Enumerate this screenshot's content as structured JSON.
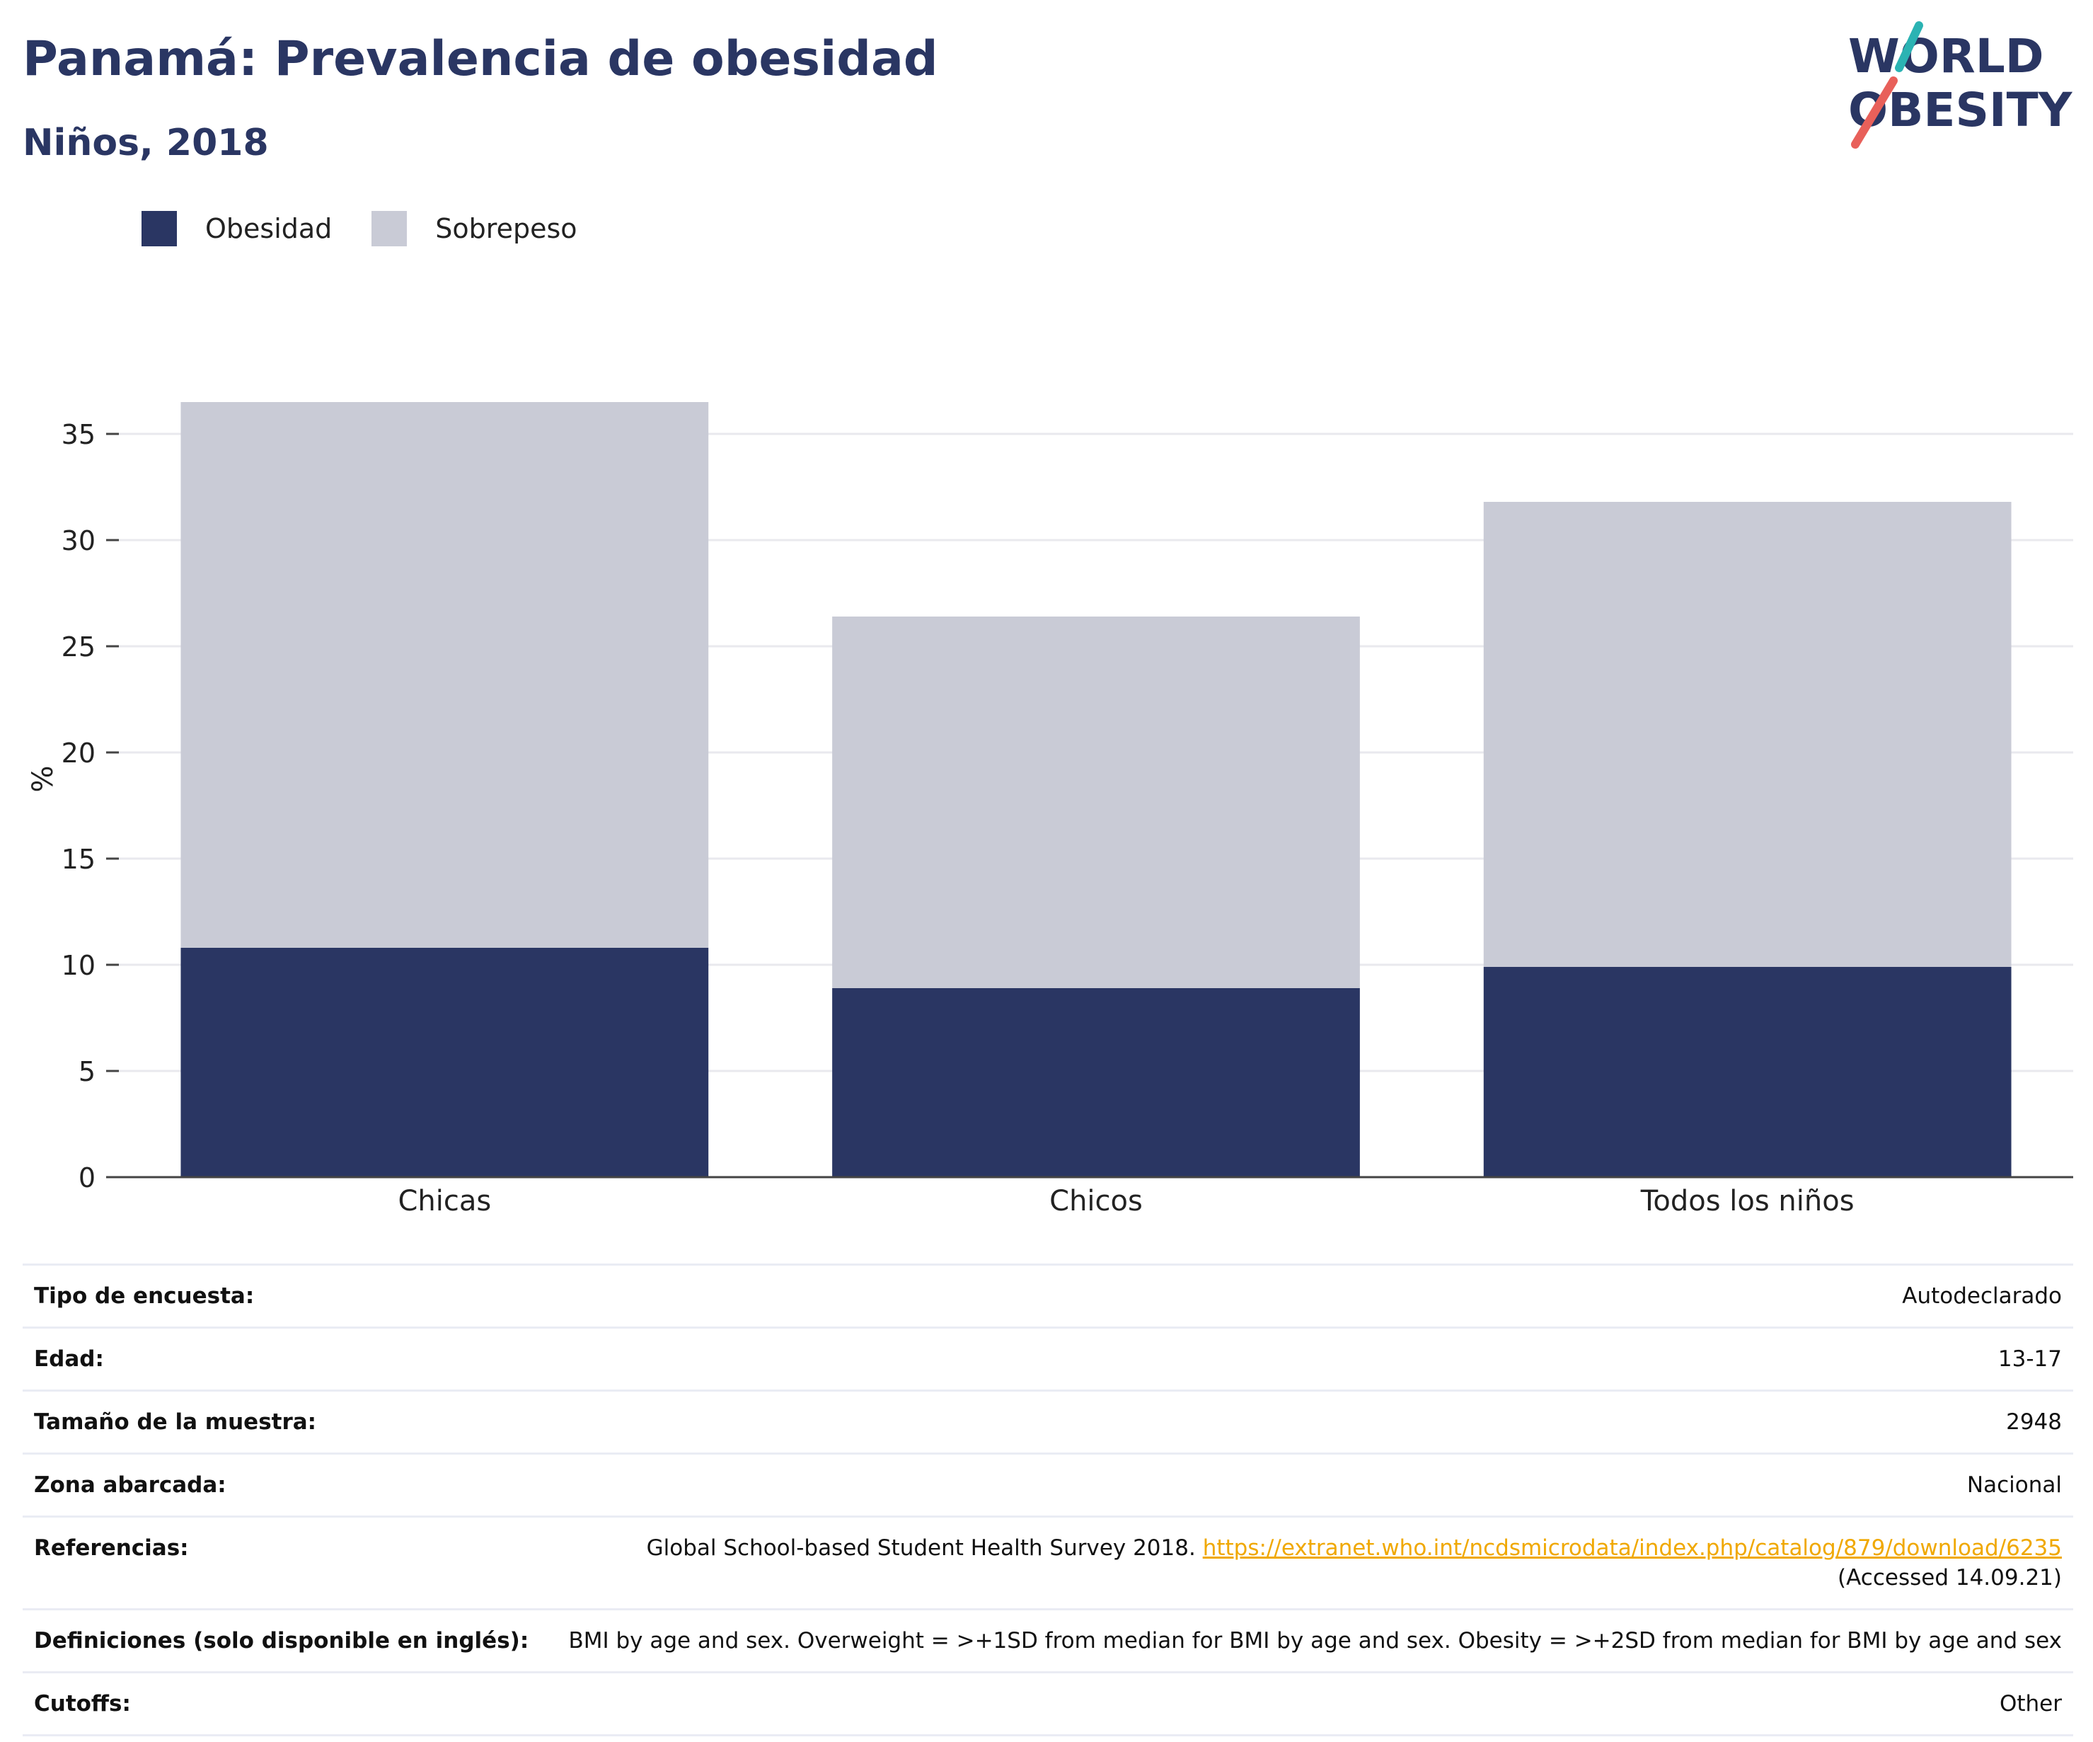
{
  "header": {
    "title": "Panamá: Prevalencia de obesidad",
    "subtitle": "Niños, 2018"
  },
  "logo": {
    "line1": "WORLD",
    "line2": "OBESITY",
    "colors": {
      "text": "#2a3663",
      "slash_top": "#2bb3b3",
      "slash_bottom": "#e8605a"
    }
  },
  "legend": [
    {
      "label": "Obesidad",
      "color": "#2a3663"
    },
    {
      "label": "Sobrepeso",
      "color": "#c9cbd6"
    }
  ],
  "chart_data": {
    "type": "bar",
    "stacked": true,
    "categories": [
      "Chicas",
      "Chicos",
      "Todos los niños"
    ],
    "series": [
      {
        "name": "Obesidad",
        "values": [
          10.8,
          8.9,
          9.9
        ],
        "color": "#2a3663"
      },
      {
        "name": "Sobrepeso",
        "values": [
          25.7,
          17.5,
          21.9
        ],
        "color": "#c9cbd6"
      }
    ],
    "ylabel": "%",
    "yticks": [
      0,
      5,
      10,
      15,
      20,
      25,
      30,
      35
    ],
    "ylim": [
      0,
      37.5
    ],
    "grid": true,
    "legend_position": "top-left"
  },
  "info": [
    {
      "label": "Tipo de encuesta:",
      "value": "Autodeclarado"
    },
    {
      "label": "Edad:",
      "value": "13-17"
    },
    {
      "label": "Tamaño de la muestra:",
      "value": "2948"
    },
    {
      "label": "Zona abarcada:",
      "value": "Nacional"
    },
    {
      "label": "Referencias:",
      "value": "Global School-based Student Health Survey 2018. ",
      "link": "https://extranet.who.int/ncdsmicrodata/index.php/catalog/879/download/6235",
      "note": "(Accessed 14.09.21)"
    },
    {
      "label": "Definiciones (solo disponible en inglés):",
      "value": "BMI by age and sex. Overweight = >+1SD from median for BMI by age and sex. Obesity = >+2SD from median for BMI by age and sex"
    },
    {
      "label": "Cutoffs:",
      "value": "Other"
    }
  ]
}
